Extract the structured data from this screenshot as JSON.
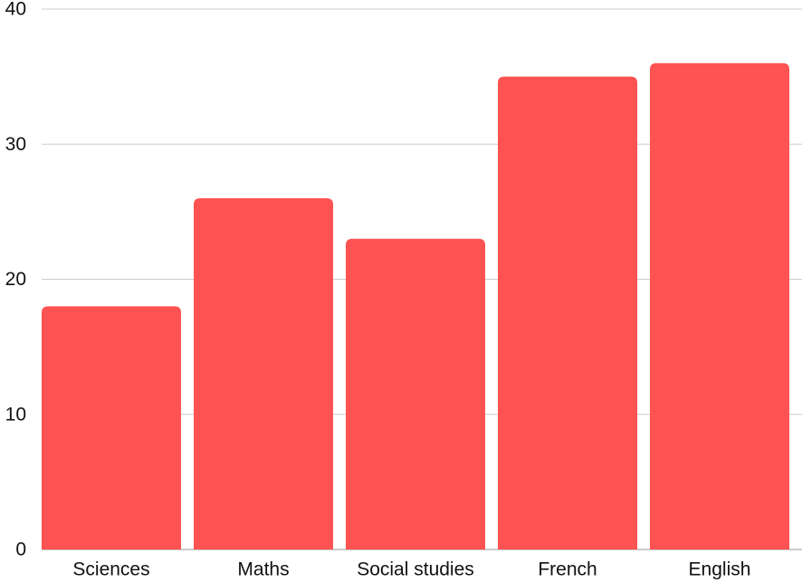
{
  "chart_data": {
    "type": "bar",
    "title": "",
    "xlabel": "",
    "ylabel": "",
    "categories": [
      "Sciences",
      "Maths",
      "Social studies",
      "French",
      "English"
    ],
    "values": [
      18,
      26,
      23,
      35,
      36
    ],
    "ylim": [
      0,
      40
    ],
    "yticks": [
      0,
      10,
      20,
      30,
      40
    ],
    "grid": true,
    "legend": "none",
    "colors": {
      "bar": "#ff5252",
      "grid": "#cccccc",
      "axis": "#999999",
      "text": "#111111"
    }
  }
}
